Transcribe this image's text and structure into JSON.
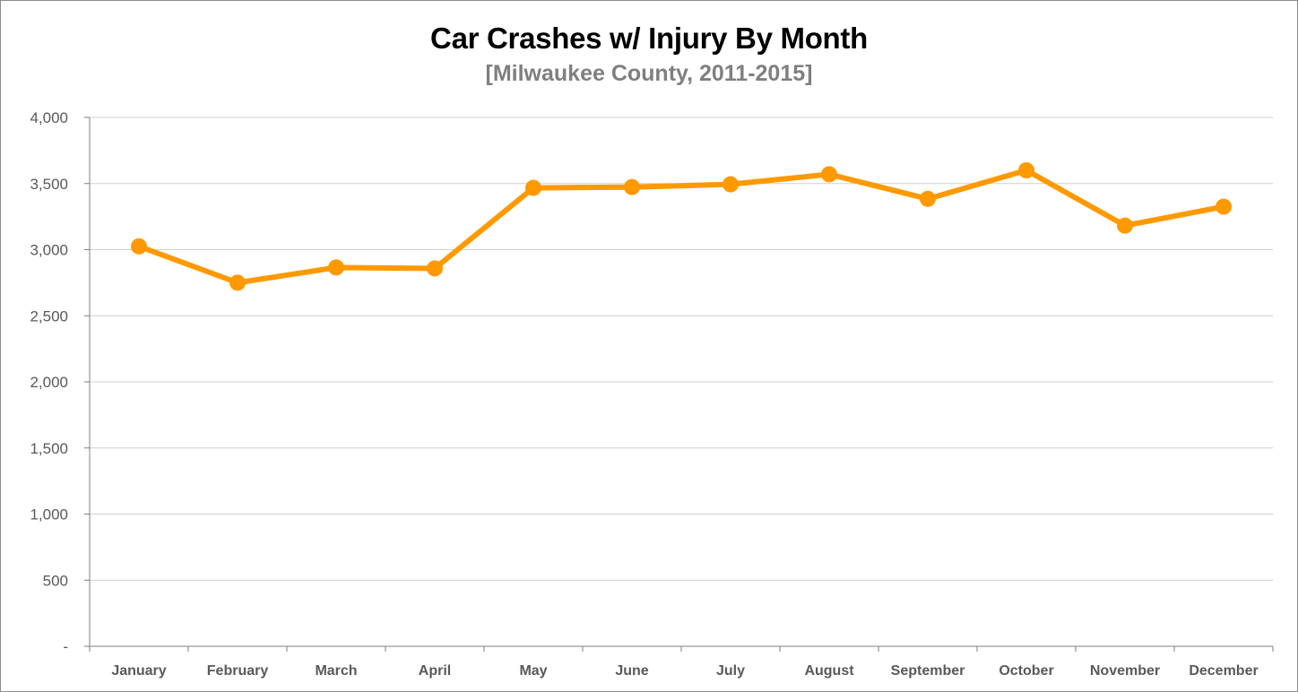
{
  "chart_data": {
    "type": "line",
    "title": "Car Crashes w/ Injury By Month",
    "subtitle": "[Milwaukee County, 2011-2015]",
    "xlabel": "",
    "ylabel": "",
    "categories": [
      "January",
      "February",
      "March",
      "April",
      "May",
      "June",
      "July",
      "August",
      "September",
      "October",
      "November",
      "December"
    ],
    "series": [
      {
        "values": [
          3025,
          2750,
          2865,
          2858,
          3467,
          3473,
          3494,
          3570,
          3384,
          3600,
          3182,
          3325
        ]
      }
    ],
    "ylim": [
      0,
      4000
    ],
    "yticks": [
      0,
      500,
      1000,
      1500,
      2000,
      2500,
      3000,
      3500,
      4000
    ],
    "ytick_labels": [
      "-",
      "500",
      "1,000",
      "1,500",
      "2,000",
      "2,500",
      "3,000",
      "3,500",
      "4,000"
    ],
    "grid": true,
    "legend": "none",
    "line_color": "#ff9900"
  }
}
